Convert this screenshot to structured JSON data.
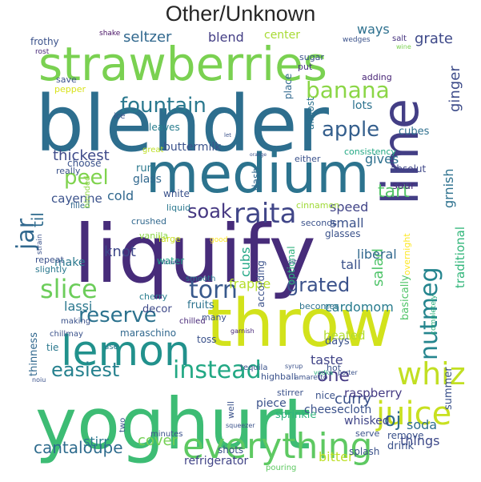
{
  "title": "Other/Unknown",
  "words": [
    {
      "text": "liquify",
      "color": "#472c7a"
    },
    {
      "text": "blender",
      "color": "#2d6e8e"
    },
    {
      "text": "yoghurt",
      "color": "#3dbc74"
    },
    {
      "text": "throw",
      "color": "#d2e21b"
    },
    {
      "text": "strawberries",
      "color": "#7ad151"
    },
    {
      "text": "medium",
      "color": "#2c738e"
    },
    {
      "text": "lime",
      "color": "#433e85"
    },
    {
      "text": "lemon",
      "color": "#21918c"
    },
    {
      "text": "everything",
      "color": "#5ec962"
    },
    {
      "text": "whiz",
      "color": "#c2df23"
    },
    {
      "text": "juice",
      "color": "#c8e020"
    },
    {
      "text": "instead",
      "color": "#22a884"
    },
    {
      "text": "raita",
      "color": "#404688"
    },
    {
      "text": "fountain",
      "color": "#2a788e"
    },
    {
      "text": "banana",
      "color": "#8bd646"
    },
    {
      "text": "apple",
      "color": "#355f8d"
    },
    {
      "text": "easiest",
      "color": "#26818e"
    },
    {
      "text": "slice",
      "color": "#6ccd5a"
    },
    {
      "text": "torn",
      "color": "#38598c"
    },
    {
      "text": "reserve",
      "color": "#2c728e"
    },
    {
      "text": "grated",
      "color": "#3b528b"
    },
    {
      "text": "nutmeg",
      "color": "#25858e"
    },
    {
      "text": "peel",
      "color": "#7fd34e"
    },
    {
      "text": "jar",
      "color": "#31688e"
    },
    {
      "text": "soak",
      "color": "#453781"
    },
    {
      "text": "cantaloupe",
      "color": "#2f6c8e"
    },
    {
      "text": "thickest",
      "color": "#3e4a89"
    },
    {
      "text": "tart",
      "color": "#54c568"
    },
    {
      "text": "til",
      "color": "#2f6b8e"
    },
    {
      "text": "one",
      "color": "#443983"
    },
    {
      "text": "oj",
      "color": "#2f6c8e"
    },
    {
      "text": "curry",
      "color": "#3b528b"
    },
    {
      "text": "seltzer",
      "color": "#31688e"
    },
    {
      "text": "blend",
      "color": "#433e85"
    },
    {
      "text": "grate",
      "color": "#3e4989"
    },
    {
      "text": "ways",
      "color": "#2d708e"
    },
    {
      "text": "center",
      "color": "#a8db34"
    },
    {
      "text": "cardomom",
      "color": "#287c8e"
    },
    {
      "text": "frappe",
      "color": "#b5de2b"
    },
    {
      "text": "salad",
      "color": "#50c46a"
    },
    {
      "text": "ginger",
      "color": "#3e4c8a"
    },
    {
      "text": "grnish",
      "color": "#2d718e"
    },
    {
      "text": "traditional",
      "color": "#32b67a"
    },
    {
      "text": "soda",
      "color": "#2e6e8e"
    },
    {
      "text": "things",
      "color": "#3e4989"
    },
    {
      "text": "whisked",
      "color": "#404588"
    },
    {
      "text": "lassi",
      "color": "#2a778e"
    },
    {
      "text": "cover",
      "color": "#75d054"
    },
    {
      "text": "stirr",
      "color": "#2a788e"
    },
    {
      "text": "bitter",
      "color": "#bddf26"
    },
    {
      "text": "refrigerator",
      "color": "#414487"
    },
    {
      "text": "cold",
      "color": "#31688e"
    },
    {
      "text": "cayenne",
      "color": "#3b528b"
    },
    {
      "text": "knot",
      "color": "#3f4889"
    },
    {
      "text": "make",
      "color": "#2a788e"
    },
    {
      "text": "tall",
      "color": "#3b528b"
    },
    {
      "text": "speed",
      "color": "#414487"
    },
    {
      "text": "small",
      "color": "#3b528b"
    },
    {
      "text": "gives",
      "color": "#2d708e"
    },
    {
      "text": "buttermilk",
      "color": "#3b528b"
    },
    {
      "text": "lots",
      "color": "#2c728e"
    },
    {
      "text": "liberal",
      "color": "#31688e"
    },
    {
      "text": "heated",
      "color": "#b2dd2d"
    },
    {
      "text": "cubs",
      "color": "#21a685"
    },
    {
      "text": "taste",
      "color": "#414487"
    },
    {
      "text": "thinness",
      "color": "#31688e"
    },
    {
      "text": "raspberry",
      "color": "#443a83"
    },
    {
      "text": "choose",
      "color": "#3b528b"
    },
    {
      "text": "run",
      "color": "#2a788e"
    },
    {
      "text": "glass",
      "color": "#31688e"
    },
    {
      "text": "white",
      "color": "#3b528b"
    },
    {
      "text": "sour",
      "color": "#472c7a"
    },
    {
      "text": "absolut",
      "color": "#3f4788"
    },
    {
      "text": "cubes",
      "color": "#2e6f8e"
    },
    {
      "text": "almost",
      "color": "#2c728e"
    },
    {
      "text": "place",
      "color": "#31688e"
    },
    {
      "text": "dash",
      "color": "#31688e"
    },
    {
      "text": "save",
      "color": "#3b528b"
    },
    {
      "text": "pepper",
      "color": "#d8e219"
    },
    {
      "text": "ice",
      "color": "#3b528b"
    },
    {
      "text": "leaves",
      "color": "#287d8e"
    },
    {
      "text": "either",
      "color": "#3b528b"
    },
    {
      "text": "consistency",
      "color": "#22a884"
    },
    {
      "text": "adding",
      "color": "#482576"
    },
    {
      "text": "sugar",
      "color": "#3b528b"
    },
    {
      "text": "put",
      "color": "#46327e"
    },
    {
      "text": "frothy",
      "color": "#3b528b"
    },
    {
      "text": "shake",
      "color": "#471164"
    },
    {
      "text": "rost",
      "color": "#482878"
    },
    {
      "text": "wedges",
      "color": "#3b528b"
    },
    {
      "text": "salt",
      "color": "#46337f"
    },
    {
      "text": "wine",
      "color": "#7ad151"
    },
    {
      "text": "great",
      "color": "#bddf26"
    },
    {
      "text": "really",
      "color": "#3b528b"
    },
    {
      "text": "filled",
      "color": "#31688e"
    },
    {
      "text": "blended",
      "color": "#8fd744"
    },
    {
      "text": "crushed",
      "color": "#31688e"
    },
    {
      "text": "vanilla",
      "color": "#8bd646"
    },
    {
      "text": "liquid",
      "color": "#2a788e"
    },
    {
      "text": "cinnamon",
      "color": "#a0da39"
    },
    {
      "text": "seconds",
      "color": "#3b528b"
    },
    {
      "text": "glasses",
      "color": "#3b528b"
    },
    {
      "text": "repeat",
      "color": "#3b528b"
    },
    {
      "text": "slightly",
      "color": "#2a788e"
    },
    {
      "text": "strain",
      "color": "#3b528b"
    },
    {
      "text": "large",
      "color": "#c8e020"
    },
    {
      "text": "good",
      "color": "#fde725"
    },
    {
      "text": "optional",
      "color": "#2db27d"
    },
    {
      "text": "overnight",
      "color": "#fde725"
    },
    {
      "text": "according",
      "color": "#3b528b"
    },
    {
      "text": "water",
      "color": "#1fa187"
    },
    {
      "text": "straw",
      "color": "#3b528b"
    },
    {
      "text": "smooth",
      "color": "#2a788e"
    },
    {
      "text": "cherry",
      "color": "#287d8e"
    },
    {
      "text": "decor",
      "color": "#3e4989"
    },
    {
      "text": "fruits",
      "color": "#2c728e"
    },
    {
      "text": "many",
      "color": "#3b528b"
    },
    {
      "text": "becomes",
      "color": "#2c728e"
    },
    {
      "text": "making",
      "color": "#3b528b"
    },
    {
      "text": "chillmay",
      "color": "#3b528b"
    },
    {
      "text": "maraschino",
      "color": "#31688e"
    },
    {
      "text": "use",
      "color": "#2a788e"
    },
    {
      "text": "chilled",
      "color": "#482878"
    },
    {
      "text": "tie",
      "color": "#2a788e"
    },
    {
      "text": "toss",
      "color": "#3b528b"
    },
    {
      "text": "days",
      "color": "#3b528b"
    },
    {
      "text": "basically",
      "color": "#52c569"
    },
    {
      "text": "completely",
      "color": "#2db27d"
    },
    {
      "text": "garnish",
      "color": "#482878"
    },
    {
      "text": "tequila",
      "color": "#3b528b"
    },
    {
      "text": "highball",
      "color": "#3b528b"
    },
    {
      "text": "vodka",
      "color": "#2db27d"
    },
    {
      "text": "amaretto",
      "color": "#3b528b"
    },
    {
      "text": "syrup",
      "color": "#3b528b"
    },
    {
      "text": "hot",
      "color": "#3b528b"
    },
    {
      "text": "stirrer",
      "color": "#3b528b"
    },
    {
      "text": "nice",
      "color": "#3b528b"
    },
    {
      "text": "well",
      "color": "#3b528b"
    },
    {
      "text": "piece",
      "color": "#3b528b"
    },
    {
      "text": "sprinkle",
      "color": "#2db27d"
    },
    {
      "text": "cheesecloth",
      "color": "#3b528b"
    },
    {
      "text": "summer",
      "color": "#3b528b"
    },
    {
      "text": "remove",
      "color": "#3b528b"
    },
    {
      "text": "serve",
      "color": "#3b528b"
    },
    {
      "text": "drink",
      "color": "#3b528b"
    },
    {
      "text": "splash",
      "color": "#3b528b"
    },
    {
      "text": "pouring",
      "color": "#5ec962"
    },
    {
      "text": "shots",
      "color": "#3b528b"
    },
    {
      "text": "two",
      "color": "#3b528b"
    },
    {
      "text": "minutes",
      "color": "#3b528b"
    },
    {
      "text": "noiu",
      "color": "#3b528b"
    },
    {
      "text": "porter",
      "color": "#3b528b"
    },
    {
      "text": "squeezer",
      "color": "#3b528b"
    },
    {
      "text": "orange",
      "color": "#3b528b"
    },
    {
      "text": "sit",
      "color": "#3b528b"
    },
    {
      "text": "let",
      "color": "#3b528b"
    }
  ]
}
